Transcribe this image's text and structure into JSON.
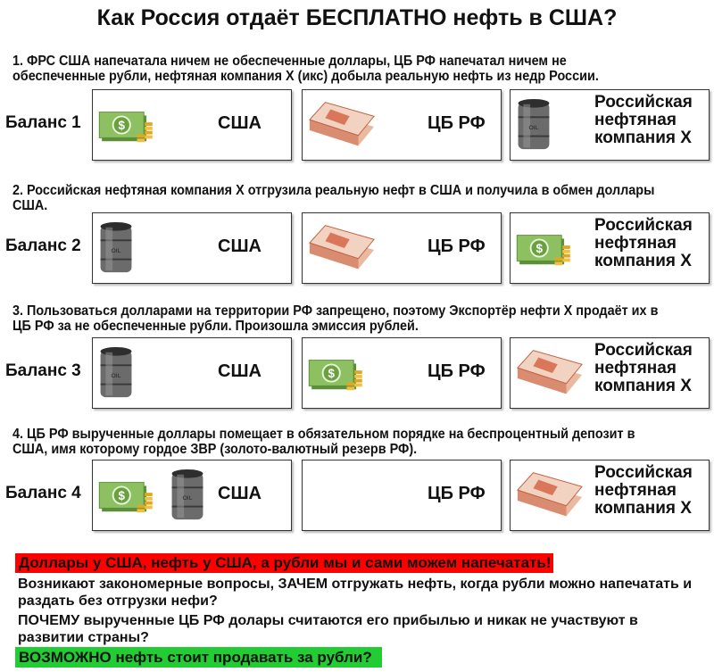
{
  "title": "Как Россия отдаёт БЕСПЛАТНО нефть в США?",
  "steps": [
    {
      "text": "1. ФРС США напечатала ничем не обеспеченные доллары, ЦБ РФ напечатал ничем не обеспеченные рубли, нефтяная компания X (икс) добыла реальную нефть из недр России.",
      "balance": "Баланс 1",
      "boxes": [
        {
          "label": "США",
          "icons": [
            "dollar-money-icon"
          ]
        },
        {
          "label": "ЦБ РФ",
          "icons": [
            "ruble-stack-icon"
          ]
        },
        {
          "label": "Российская нефтяная компания X",
          "icons": [
            "oil-barrel-icon"
          ]
        }
      ]
    },
    {
      "text": "2. Российская нефтяная компания X отгрузила реальную нефт в США и получила в обмен доллары США.",
      "balance": "Баланс 2",
      "boxes": [
        {
          "label": "США",
          "icons": [
            "oil-barrel-icon"
          ]
        },
        {
          "label": "ЦБ РФ",
          "icons": [
            "ruble-stack-icon"
          ]
        },
        {
          "label": "Российская нефтяная компания X",
          "icons": [
            "dollar-money-icon"
          ]
        }
      ]
    },
    {
      "text": "3. Пользоваться долларами на территории РФ запрещено, поэтому Экспортёр нефти X продаёт их в ЦБ РФ за не обеспеченные рубли. Произошла эмиссия рублей.",
      "balance": "Баланс 3",
      "boxes": [
        {
          "label": "США",
          "icons": [
            "oil-barrel-icon"
          ]
        },
        {
          "label": "ЦБ РФ",
          "icons": [
            "dollar-money-icon"
          ]
        },
        {
          "label": "Российская нефтяная компания X",
          "icons": [
            "ruble-stack-icon"
          ]
        }
      ]
    },
    {
      "text": "4. ЦБ РФ вырученные доллары помещает в обязательном порядке на беспроцентный депозит в США, имя которому гордое ЗВР (золото-валютный резерв РФ).",
      "balance": "Баланс 4",
      "boxes": [
        {
          "label": "США",
          "icons": [
            "dollar-money-icon",
            "oil-barrel-icon"
          ]
        },
        {
          "label": "ЦБ РФ",
          "icons": []
        },
        {
          "label": "Российская нефтяная компания X",
          "icons": [
            "ruble-stack-icon"
          ]
        }
      ]
    }
  ],
  "red_banner": "Доллары у США, нефть у США, а рубли мы и сами можем напечатать!",
  "question1": "Возникают закономерные вопросы, ЗАЧЕМ отгружать нефть, когда рубли можно напечатать и раздать без отгрузки нефи?",
  "question2": "ПОЧЕМУ вырученные ЦБ РФ долары считаются его прибылью и никак не участвуют в развитии страны?",
  "green_banner": "ВОЗМОЖНО нефть стоит продавать за рубли?",
  "colors": {
    "red": "#ff0000",
    "green": "#22cc33"
  }
}
